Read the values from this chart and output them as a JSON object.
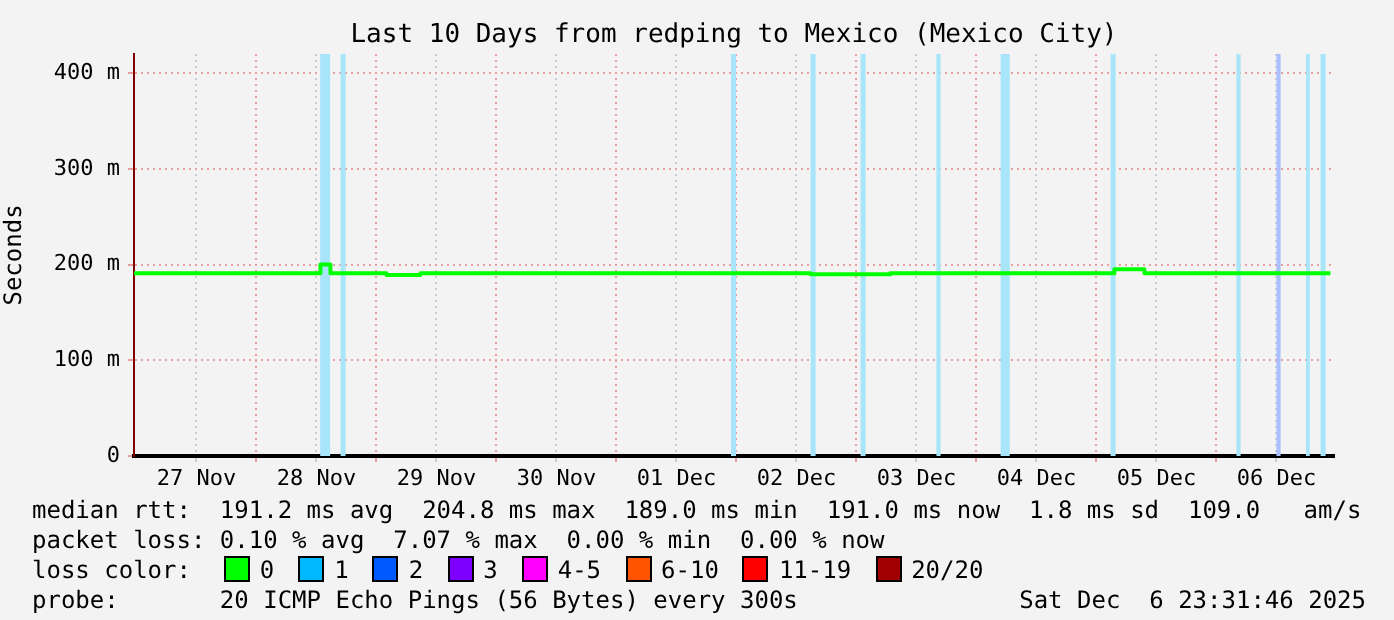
{
  "chart_data": {
    "type": "step",
    "title": "Last 10 Days from redping to Mexico (Mexico City)",
    "ylabel": "Seconds",
    "xlim": [
      "2025-11-26T23:31",
      "2025-12-06T23:31"
    ],
    "xticks": [
      {
        "value": "2025-11-27T12:00",
        "label": "27 Nov"
      },
      {
        "value": "2025-11-28T00:00",
        "label": null
      },
      {
        "value": "2025-11-28T12:00",
        "label": "28 Nov"
      },
      {
        "value": "2025-11-29T00:00",
        "label": null
      },
      {
        "value": "2025-11-29T12:00",
        "label": "29 Nov"
      },
      {
        "value": "2025-11-30T00:00",
        "label": null
      },
      {
        "value": "2025-11-30T12:00",
        "label": "30 Nov"
      },
      {
        "value": "2025-12-01T00:00",
        "label": null
      },
      {
        "value": "2025-12-01T12:00",
        "label": "01 Dec"
      },
      {
        "value": "2025-12-02T00:00",
        "label": null
      },
      {
        "value": "2025-12-02T12:00",
        "label": "02 Dec"
      },
      {
        "value": "2025-12-03T00:00",
        "label": null
      },
      {
        "value": "2025-12-03T12:00",
        "label": "03 Dec"
      },
      {
        "value": "2025-12-04T00:00",
        "label": null
      },
      {
        "value": "2025-12-04T12:00",
        "label": "04 Dec"
      },
      {
        "value": "2025-12-05T00:00",
        "label": null
      },
      {
        "value": "2025-12-05T12:00",
        "label": "05 Dec"
      },
      {
        "value": "2025-12-06T00:00",
        "label": null
      },
      {
        "value": "2025-12-06T12:00",
        "label": "06 Dec"
      }
    ],
    "ylim": [
      0,
      420
    ],
    "yticks": [
      0,
      {
        "value": 100,
        "label": "100 m"
      },
      {
        "value": 200,
        "label": "200 m"
      },
      {
        "value": 300,
        "label": "300 m"
      },
      {
        "value": 400,
        "label": "400 m"
      }
    ],
    "grid": true,
    "legend": false,
    "series": [
      {
        "color": "#00ff00",
        "x": [
          "2025-11-26T23:31",
          "2025-11-28T12:48",
          "2025-11-28T14:48",
          "2025-11-29T02:00",
          "2025-11-29T08:48",
          "2025-12-02T14:48",
          "2025-12-03T06:48",
          "2025-12-05T03:36",
          "2025-12-05T09:36",
          "2025-12-06T22:48"
        ],
        "values": [
          191,
          200,
          191,
          189,
          191,
          190,
          191,
          195,
          191,
          191
        ]
      }
    ],
    "bands": [
      {
        "axis": "x",
        "from": "2025-11-28T12:45",
        "to": "2025-11-28T14:45",
        "color": "#a8e4fa"
      },
      {
        "axis": "x",
        "from": "2025-11-28T16:50",
        "to": "2025-11-28T17:50",
        "color": "#a8e4fa"
      },
      {
        "axis": "x",
        "from": "2025-12-01T22:55",
        "to": "2025-12-01T23:55",
        "color": "#a8e4fa"
      },
      {
        "axis": "x",
        "from": "2025-12-02T14:50",
        "to": "2025-12-02T15:50",
        "color": "#a8e4fa"
      },
      {
        "axis": "x",
        "from": "2025-12-03T00:50",
        "to": "2025-12-03T01:50",
        "color": "#a8e4fa"
      },
      {
        "axis": "x",
        "from": "2025-12-03T16:00",
        "to": "2025-12-03T16:50",
        "color": "#a8e4fa"
      },
      {
        "axis": "x",
        "from": "2025-12-04T04:50",
        "to": "2025-12-04T06:40",
        "color": "#a8e4fa"
      },
      {
        "axis": "x",
        "from": "2025-12-05T02:50",
        "to": "2025-12-05T03:50",
        "color": "#a8e4fa"
      },
      {
        "axis": "x",
        "from": "2025-12-06T04:00",
        "to": "2025-12-06T04:50",
        "color": "#a8e4fa"
      },
      {
        "axis": "x",
        "from": "2025-12-06T12:00",
        "to": "2025-12-06T12:50",
        "color": "#a8c0ff"
      },
      {
        "axis": "x",
        "from": "2025-12-06T17:55",
        "to": "2025-12-06T18:40",
        "color": "#a8e4fa"
      },
      {
        "axis": "x",
        "from": "2025-12-06T20:50",
        "to": "2025-12-06T21:50",
        "color": "#a8e4fa"
      }
    ],
    "annotations": [
      "median rtt:  191.2 ms avg  204.8 ms max  189.0 ms min  191.0 ms now  1.8 ms sd  109.0   am/s",
      "packet loss: 0.10 % avg  7.07 % max  0.00 % min  0.00 % now",
      "loss color:",
      "0",
      "1",
      "2",
      "3",
      "4-5",
      "6-10",
      "11-19",
      "20/20",
      "probe:       20 ICMP Echo Pings (56 Bytes) every 300s",
      "Sat Dec  6 23:31:46 2025"
    ]
  }
}
